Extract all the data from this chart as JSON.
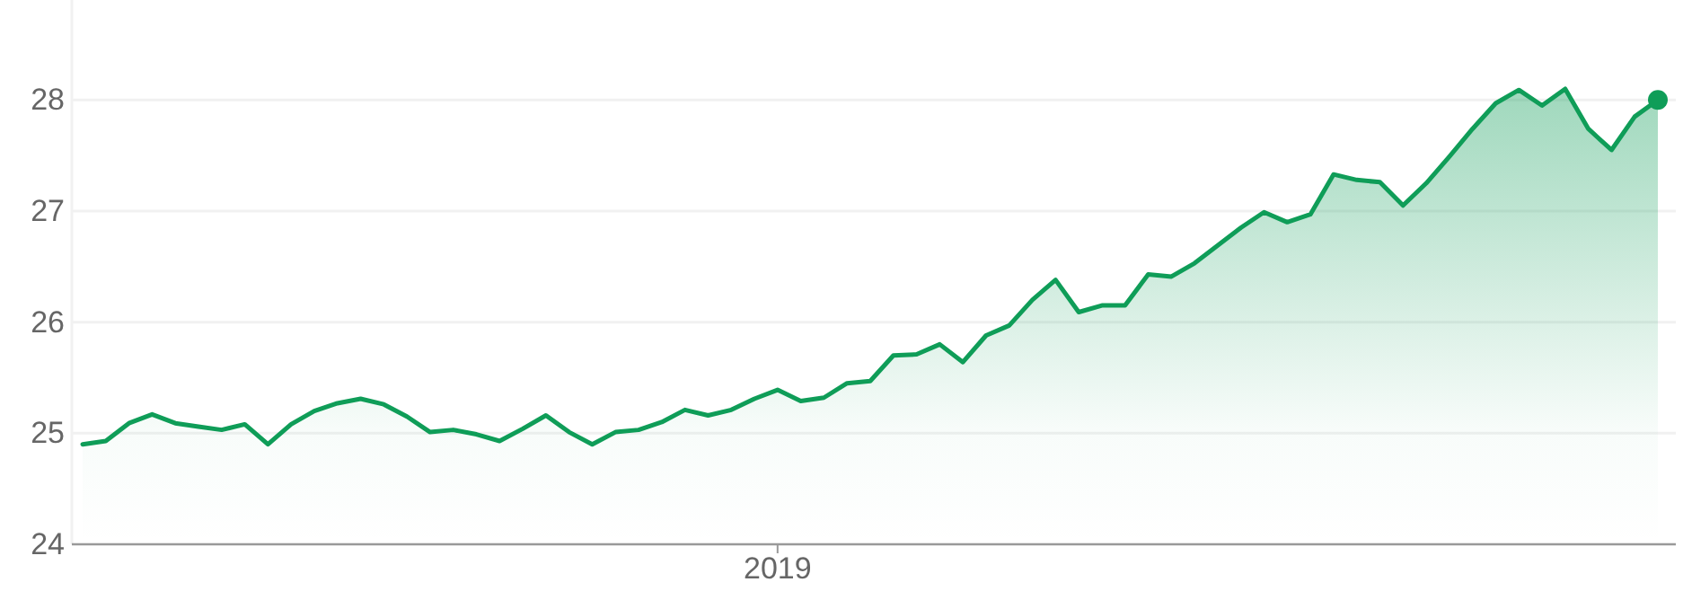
{
  "chart_data": {
    "type": "area",
    "categories": [
      null,
      null,
      null,
      null,
      null,
      null,
      null,
      null,
      null,
      null,
      null,
      null,
      null,
      null,
      null,
      null,
      null,
      null,
      null,
      null,
      null,
      null,
      null,
      null,
      null,
      null,
      null,
      null,
      null,
      null,
      "2019",
      null,
      null,
      null,
      null,
      null,
      null,
      null,
      null,
      null,
      null,
      null,
      null,
      null,
      null,
      null,
      null,
      null,
      null,
      null,
      null,
      null,
      null,
      null,
      null,
      null,
      null,
      null,
      null,
      null,
      null,
      null,
      null,
      null,
      null,
      null,
      null,
      null,
      null
    ],
    "series": [
      {
        "type": "area",
        "color": "#0f9d58",
        "values": [
          24.9,
          24.93,
          25.09,
          25.17,
          25.09,
          25.06,
          25.03,
          25.08,
          24.9,
          25.08,
          25.2,
          25.27,
          25.31,
          25.26,
          25.15,
          25.01,
          25.03,
          24.99,
          24.93,
          25.04,
          25.16,
          25.01,
          24.9,
          25.01,
          25.03,
          25.1,
          25.21,
          25.16,
          25.21,
          25.31,
          25.39,
          25.29,
          25.32,
          25.45,
          25.47,
          25.7,
          25.71,
          25.8,
          25.64,
          25.88,
          25.97,
          26.2,
          26.38,
          26.09,
          26.15,
          26.15,
          26.43,
          26.41,
          26.53,
          26.69,
          26.85,
          26.99,
          26.9,
          26.97,
          27.33,
          27.28,
          27.26,
          27.05,
          27.25,
          27.49,
          27.74,
          27.97,
          28.09,
          27.95,
          28.1,
          27.74,
          27.55,
          27.85,
          28.0
        ]
      },
      {
        "type": "scatter",
        "color": "#0f9d58",
        "values": [
          null,
          null,
          null,
          null,
          null,
          null,
          null,
          null,
          null,
          null,
          null,
          null,
          null,
          null,
          null,
          null,
          null,
          null,
          null,
          null,
          null,
          null,
          null,
          null,
          null,
          null,
          null,
          null,
          null,
          null,
          null,
          null,
          null,
          null,
          null,
          null,
          null,
          null,
          null,
          null,
          null,
          null,
          null,
          null,
          null,
          null,
          null,
          null,
          null,
          null,
          null,
          null,
          null,
          null,
          null,
          null,
          null,
          null,
          null,
          null,
          null,
          null,
          null,
          null,
          null,
          null,
          null,
          null,
          28.0
        ]
      }
    ],
    "ylim": [
      24,
      28.9
    ],
    "yticks": [
      24,
      25,
      26,
      27,
      28
    ],
    "grid": "y",
    "line_style": "solid"
  }
}
